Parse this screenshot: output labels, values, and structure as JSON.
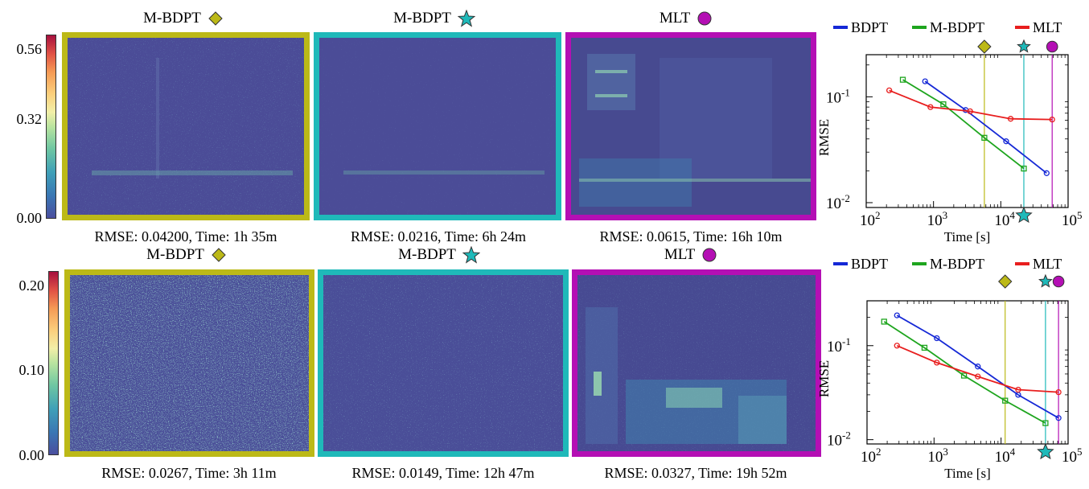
{
  "rows": [
    {
      "colorbar_ticks": [
        "0.56",
        "0.32",
        "0.00"
      ],
      "panels": [
        {
          "method": "M-BDPT",
          "marker": "diamond",
          "color": "#bcb917",
          "caption": "RMSE: 0.04200, Time: 1h 35m"
        },
        {
          "method": "M-BDPT",
          "marker": "star",
          "color": "#1fb9b9",
          "caption": "RMSE: 0.0216, Time: 6h 24m"
        },
        {
          "method": "MLT",
          "marker": "circle",
          "color": "#b40fb4",
          "caption": "RMSE: 0.0615, Time: 16h 10m"
        }
      ]
    },
    {
      "colorbar_ticks": [
        "0.20",
        "0.10",
        "0.00"
      ],
      "panels": [
        {
          "method": "M-BDPT",
          "marker": "diamond",
          "color": "#bcb917",
          "caption": "RMSE: 0.0267, Time: 3h 11m"
        },
        {
          "method": "M-BDPT",
          "marker": "star",
          "color": "#1fb9b9",
          "caption": "RMSE: 0.0149, Time: 12h 47m"
        },
        {
          "method": "MLT",
          "marker": "circle",
          "color": "#b40fb4",
          "caption": "RMSE: 0.0327, Time: 19h 52m"
        }
      ]
    }
  ],
  "chart_data": [
    {
      "type": "line",
      "xlabel": "Time [s]",
      "ylabel": "RMSE",
      "xscale": "log",
      "yscale": "log",
      "xlim": [
        100,
        100000
      ],
      "ylim": [
        0.009,
        0.25
      ],
      "x_tick_labels": [
        "10^2",
        "10^3",
        "10^4",
        "10^5"
      ],
      "y_tick_labels": [
        "10^-2",
        "10^-1"
      ],
      "legend": [
        "BDPT",
        "M-BDPT",
        "MLT"
      ],
      "legend_placement": "top",
      "series": [
        {
          "name": "BDPT",
          "color": "#1528d6",
          "marker": "circle",
          "x": [
            750,
            3000,
            12000,
            48000
          ],
          "y": [
            0.14,
            0.075,
            0.038,
            0.019
          ]
        },
        {
          "name": "M-BDPT",
          "color": "#1ea51e",
          "marker": "square",
          "x": [
            350,
            1400,
            5700,
            22000
          ],
          "y": [
            0.145,
            0.085,
            0.041,
            0.021
          ]
        },
        {
          "name": "MLT",
          "color": "#e81e1e",
          "marker": "circle",
          "x": [
            220,
            900,
            3500,
            14000,
            58000
          ],
          "y": [
            0.115,
            0.08,
            0.073,
            0.062,
            0.061
          ]
        }
      ],
      "vertical_markers": [
        {
          "marker": "diamond",
          "x": 5700,
          "color": "#bcb917"
        },
        {
          "marker": "star",
          "x": 22000,
          "color": "#1fb9b9"
        },
        {
          "marker": "circle",
          "x": 58000,
          "color": "#b40fb4"
        }
      ]
    },
    {
      "type": "line",
      "xlabel": "Time [s]",
      "ylabel": "RMSE",
      "xscale": "log",
      "yscale": "log",
      "xlim": [
        100,
        100000
      ],
      "ylim": [
        0.009,
        0.3
      ],
      "x_tick_labels": [
        "10^2",
        "10^3",
        "10^4",
        "10^5"
      ],
      "y_tick_labels": [
        "10^-2",
        "10^-1"
      ],
      "legend": [
        "BDPT",
        "M-BDPT",
        "MLT"
      ],
      "legend_placement": "top",
      "series": [
        {
          "name": "BDPT",
          "color": "#1528d6",
          "marker": "circle",
          "x": [
            280,
            1100,
            4500,
            18000,
            72000
          ],
          "y": [
            0.21,
            0.12,
            0.06,
            0.03,
            0.017
          ]
        },
        {
          "name": "M-BDPT",
          "color": "#1ea51e",
          "marker": "square",
          "x": [
            180,
            720,
            2800,
            11500,
            46000
          ],
          "y": [
            0.18,
            0.095,
            0.048,
            0.026,
            0.015
          ]
        },
        {
          "name": "MLT",
          "color": "#e81e1e",
          "marker": "circle",
          "x": [
            280,
            1100,
            4500,
            18000,
            72000
          ],
          "y": [
            0.1,
            0.066,
            0.047,
            0.034,
            0.032
          ]
        }
      ],
      "vertical_markers": [
        {
          "marker": "diamond",
          "x": 11500,
          "color": "#bcb917"
        },
        {
          "marker": "star",
          "x": 46000,
          "color": "#1fb9b9"
        },
        {
          "marker": "circle",
          "x": 72000,
          "color": "#b40fb4"
        }
      ]
    }
  ]
}
